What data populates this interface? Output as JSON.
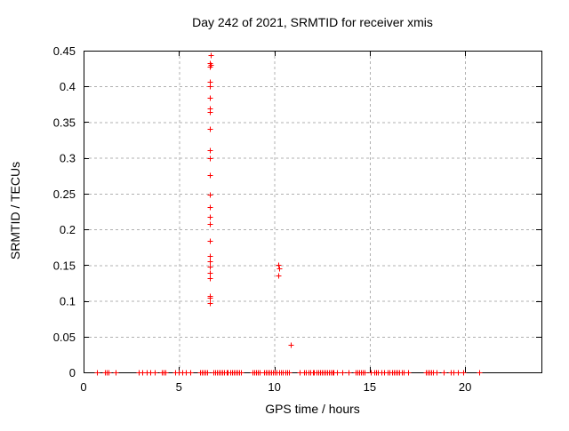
{
  "window": {
    "title": "Day 242 of 2021, SRMTID for receiver xmis"
  },
  "colors": {
    "background": "#ffffff",
    "frame": "#000000",
    "grid": "#b0b0b0",
    "marker": "#ff0000",
    "text": "#000000"
  },
  "chart_data": {
    "type": "scatter",
    "title": "Day 242 of 2021, SRMTID for receiver xmis",
    "xlabel": "GPS time / hours",
    "ylabel": "SRMTID / TECUs",
    "xlim": [
      0,
      24
    ],
    "ylim": [
      0,
      0.45
    ],
    "xticks": [
      0,
      5,
      10,
      15,
      20
    ],
    "yticks": [
      0,
      0.05,
      0.1,
      0.15,
      0.2,
      0.25,
      0.3,
      0.35,
      0.4,
      0.45
    ],
    "grid": true,
    "grid_style": "dashed",
    "legend_position": "none",
    "marker": {
      "shape": "plus",
      "color": "#ff0000",
      "size": 7
    },
    "series": [
      {
        "name": "SRMTID",
        "points": [
          [
            6.65,
            0.444
          ],
          [
            6.64,
            0.432
          ],
          [
            6.67,
            0.43
          ],
          [
            6.62,
            0.428
          ],
          [
            6.63,
            0.406
          ],
          [
            6.63,
            0.4
          ],
          [
            6.63,
            0.384
          ],
          [
            6.64,
            0.369
          ],
          [
            6.64,
            0.364
          ],
          [
            6.64,
            0.34
          ],
          [
            6.64,
            0.311
          ],
          [
            6.64,
            0.299
          ],
          [
            6.63,
            0.276
          ],
          [
            6.63,
            0.249
          ],
          [
            6.64,
            0.231
          ],
          [
            6.64,
            0.217
          ],
          [
            6.64,
            0.207
          ],
          [
            6.64,
            0.184
          ],
          [
            6.61,
            0.163
          ],
          [
            6.61,
            0.156
          ],
          [
            6.61,
            0.148
          ],
          [
            6.61,
            0.139
          ],
          [
            6.61,
            0.132
          ],
          [
            6.63,
            0.107
          ],
          [
            6.6,
            0.104
          ],
          [
            6.62,
            0.097
          ],
          [
            10.21,
            0.15
          ],
          [
            10.23,
            0.146
          ],
          [
            10.2,
            0.135
          ],
          [
            10.86,
            0.039
          ],
          [
            0.7,
            0
          ],
          [
            1.12,
            0
          ],
          [
            1.21,
            0
          ],
          [
            1.31,
            0
          ],
          [
            1.68,
            0
          ],
          [
            2.89,
            0
          ],
          [
            3.08,
            0
          ],
          [
            3.31,
            0
          ],
          [
            3.5,
            0
          ],
          [
            3.73,
            0
          ],
          [
            4.1,
            0
          ],
          [
            4.2,
            0
          ],
          [
            4.29,
            0
          ],
          [
            4.8,
            0
          ],
          [
            4.99,
            0
          ],
          [
            5.17,
            0
          ],
          [
            5.36,
            0
          ],
          [
            5.59,
            0
          ],
          [
            6.11,
            0
          ],
          [
            6.21,
            0
          ],
          [
            6.3,
            0
          ],
          [
            6.4,
            0
          ],
          [
            6.49,
            0
          ],
          [
            6.81,
            0
          ],
          [
            6.91,
            0
          ],
          [
            7.0,
            0
          ],
          [
            7.1,
            0
          ],
          [
            7.19,
            0
          ],
          [
            7.29,
            0
          ],
          [
            7.38,
            0
          ],
          [
            7.48,
            0
          ],
          [
            7.57,
            0
          ],
          [
            7.67,
            0
          ],
          [
            7.76,
            0
          ],
          [
            7.86,
            0
          ],
          [
            7.95,
            0
          ],
          [
            8.05,
            0
          ],
          [
            8.14,
            0
          ],
          [
            8.24,
            0
          ],
          [
            8.86,
            0
          ],
          [
            8.95,
            0
          ],
          [
            9.05,
            0
          ],
          [
            9.14,
            0
          ],
          [
            9.23,
            0
          ],
          [
            9.46,
            0
          ],
          [
            9.56,
            0
          ],
          [
            9.65,
            0
          ],
          [
            9.74,
            0
          ],
          [
            9.84,
            0
          ],
          [
            9.93,
            0
          ],
          [
            10.03,
            0
          ],
          [
            10.12,
            0
          ],
          [
            10.26,
            0
          ],
          [
            10.35,
            0
          ],
          [
            10.44,
            0
          ],
          [
            10.58,
            0
          ],
          [
            10.68,
            0
          ],
          [
            10.77,
            0
          ],
          [
            11.33,
            0
          ],
          [
            11.56,
            0
          ],
          [
            11.66,
            0
          ],
          [
            11.8,
            0
          ],
          [
            11.9,
            0
          ],
          [
            12.0,
            0
          ],
          [
            12.09,
            0
          ],
          [
            12.19,
            0
          ],
          [
            12.28,
            0
          ],
          [
            12.38,
            0
          ],
          [
            12.47,
            0
          ],
          [
            12.57,
            0
          ],
          [
            12.66,
            0
          ],
          [
            12.76,
            0
          ],
          [
            12.85,
            0
          ],
          [
            12.95,
            0
          ],
          [
            13.04,
            0
          ],
          [
            13.1,
            0
          ],
          [
            13.29,
            0
          ],
          [
            13.57,
            0
          ],
          [
            13.89,
            0
          ],
          [
            14.27,
            0
          ],
          [
            14.36,
            0
          ],
          [
            14.45,
            0
          ],
          [
            14.55,
            0
          ],
          [
            14.64,
            0
          ],
          [
            14.73,
            0
          ],
          [
            15.06,
            0
          ],
          [
            15.24,
            0
          ],
          [
            15.34,
            0
          ],
          [
            15.43,
            0
          ],
          [
            15.62,
            0
          ],
          [
            15.76,
            0
          ],
          [
            15.94,
            0
          ],
          [
            16.04,
            0
          ],
          [
            16.18,
            0
          ],
          [
            16.27,
            0
          ],
          [
            16.36,
            0
          ],
          [
            16.46,
            0
          ],
          [
            16.55,
            0
          ],
          [
            16.69,
            0
          ],
          [
            16.78,
            0
          ],
          [
            17.02,
            0
          ],
          [
            17.95,
            0
          ],
          [
            18.04,
            0
          ],
          [
            18.13,
            0
          ],
          [
            18.22,
            0
          ],
          [
            18.32,
            0
          ],
          [
            18.51,
            0
          ],
          [
            18.88,
            0
          ],
          [
            19.25,
            0
          ],
          [
            19.39,
            0
          ],
          [
            19.63,
            0
          ],
          [
            19.91,
            0
          ],
          [
            20.75,
            0
          ]
        ]
      }
    ]
  }
}
